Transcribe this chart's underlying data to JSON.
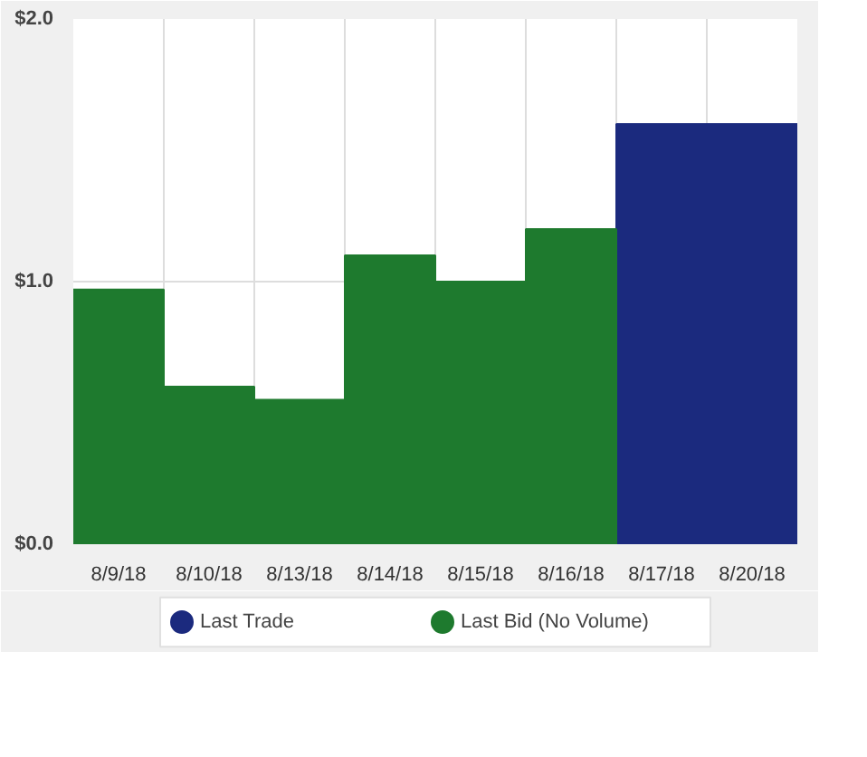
{
  "chart_data": {
    "type": "bar",
    "categories": [
      "8/9/18",
      "8/10/18",
      "8/13/18",
      "8/14/18",
      "8/15/18",
      "8/16/18",
      "8/17/18",
      "8/20/18"
    ],
    "series": [
      {
        "name": "Last Trade",
        "color": "#1b2a7e",
        "values": [
          null,
          null,
          null,
          null,
          null,
          null,
          1.6,
          1.6
        ]
      },
      {
        "name": "Last Bid (No Volume)",
        "color": "#1e7a2e",
        "values": [
          0.97,
          0.6,
          0.55,
          1.1,
          1.0,
          1.2,
          null,
          null
        ]
      }
    ],
    "ylim": [
      0,
      2
    ],
    "yticks": [
      {
        "value": 0,
        "label": "$0.0"
      },
      {
        "value": 1,
        "label": "$1.0"
      },
      {
        "value": 2,
        "label": "$2.0"
      }
    ],
    "grid": true,
    "legend": "bottom"
  }
}
